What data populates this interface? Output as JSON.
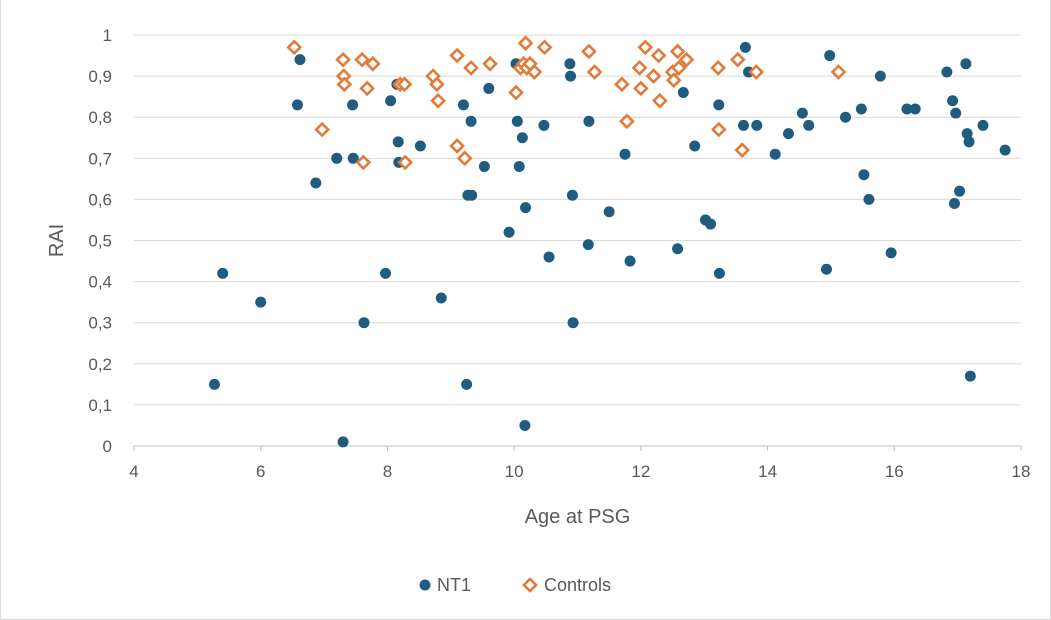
{
  "chart_data": {
    "type": "scatter",
    "title": "",
    "xlabel": "Age at PSG",
    "ylabel": "RAI",
    "xlim": [
      4,
      18
    ],
    "ylim": [
      0,
      1
    ],
    "xticks": [
      4,
      6,
      8,
      10,
      12,
      14,
      16,
      18
    ],
    "xtick_labels": [
      "4",
      "6",
      "8",
      "10",
      "12",
      "14",
      "16",
      "18"
    ],
    "yticks": [
      0,
      0.1,
      0.2,
      0.3,
      0.4,
      0.5,
      0.6,
      0.7,
      0.8,
      0.9,
      1
    ],
    "ytick_labels": [
      "0",
      "0,1",
      "0,2",
      "0,3",
      "0,4",
      "0,5",
      "0,6",
      "0,7",
      "0,8",
      "0,9",
      "1"
    ],
    "grid": "horizontal",
    "legend_position": "bottom",
    "series": [
      {
        "name": "NT1",
        "color": "#1f5c80",
        "marker": "circle",
        "points": [
          [
            5.27,
            0.15
          ],
          [
            5.4,
            0.42
          ],
          [
            6.0,
            0.35
          ],
          [
            6.58,
            0.83
          ],
          [
            6.62,
            0.94
          ],
          [
            6.87,
            0.64
          ],
          [
            7.2,
            0.7
          ],
          [
            7.3,
            0.01
          ],
          [
            7.45,
            0.83
          ],
          [
            7.46,
            0.7
          ],
          [
            7.63,
            0.3
          ],
          [
            7.97,
            0.42
          ],
          [
            8.05,
            0.84
          ],
          [
            8.15,
            0.88
          ],
          [
            8.17,
            0.74
          ],
          [
            8.18,
            0.69
          ],
          [
            8.52,
            0.73
          ],
          [
            8.85,
            0.36
          ],
          [
            9.2,
            0.83
          ],
          [
            9.25,
            0.15
          ],
          [
            9.27,
            0.61
          ],
          [
            9.32,
            0.79
          ],
          [
            9.33,
            0.61
          ],
          [
            9.53,
            0.68
          ],
          [
            9.6,
            0.87
          ],
          [
            9.92,
            0.52
          ],
          [
            10.03,
            0.93
          ],
          [
            10.05,
            0.79
          ],
          [
            10.08,
            0.68
          ],
          [
            10.13,
            0.75
          ],
          [
            10.17,
            0.05
          ],
          [
            10.18,
            0.58
          ],
          [
            10.47,
            0.78
          ],
          [
            10.55,
            0.46
          ],
          [
            10.88,
            0.93
          ],
          [
            10.89,
            0.9
          ],
          [
            10.92,
            0.61
          ],
          [
            10.93,
            0.3
          ],
          [
            11.17,
            0.49
          ],
          [
            11.18,
            0.79
          ],
          [
            11.5,
            0.57
          ],
          [
            11.75,
            0.71
          ],
          [
            11.83,
            0.45
          ],
          [
            12.58,
            0.48
          ],
          [
            12.67,
            0.86
          ],
          [
            12.85,
            0.73
          ],
          [
            13.02,
            0.55
          ],
          [
            13.1,
            0.54
          ],
          [
            13.23,
            0.83
          ],
          [
            13.24,
            0.42
          ],
          [
            13.62,
            0.78
          ],
          [
            13.65,
            0.97
          ],
          [
            13.7,
            0.91
          ],
          [
            13.83,
            0.78
          ],
          [
            14.12,
            0.71
          ],
          [
            14.33,
            0.76
          ],
          [
            14.55,
            0.81
          ],
          [
            14.65,
            0.78
          ],
          [
            14.93,
            0.43
          ],
          [
            14.98,
            0.95
          ],
          [
            15.23,
            0.8
          ],
          [
            15.48,
            0.82
          ],
          [
            15.52,
            0.66
          ],
          [
            15.6,
            0.6
          ],
          [
            15.78,
            0.9
          ],
          [
            15.95,
            0.47
          ],
          [
            16.2,
            0.82
          ],
          [
            16.33,
            0.82
          ],
          [
            16.83,
            0.91
          ],
          [
            16.92,
            0.84
          ],
          [
            16.95,
            0.59
          ],
          [
            16.97,
            0.81
          ],
          [
            17.03,
            0.62
          ],
          [
            17.13,
            0.93
          ],
          [
            17.15,
            0.76
          ],
          [
            17.18,
            0.74
          ],
          [
            17.2,
            0.17
          ],
          [
            17.4,
            0.78
          ],
          [
            17.75,
            0.72
          ]
        ]
      },
      {
        "name": "Controls",
        "color": "#e07b39",
        "marker": "diamond",
        "points": [
          [
            6.53,
            0.97
          ],
          [
            6.97,
            0.77
          ],
          [
            7.3,
            0.94
          ],
          [
            7.31,
            0.9
          ],
          [
            7.32,
            0.88
          ],
          [
            7.6,
            0.94
          ],
          [
            7.62,
            0.69
          ],
          [
            7.68,
            0.87
          ],
          [
            7.77,
            0.93
          ],
          [
            8.2,
            0.88
          ],
          [
            8.27,
            0.88
          ],
          [
            8.28,
            0.69
          ],
          [
            8.72,
            0.9
          ],
          [
            8.78,
            0.88
          ],
          [
            8.8,
            0.84
          ],
          [
            9.1,
            0.73
          ],
          [
            9.1,
            0.95
          ],
          [
            9.22,
            0.7
          ],
          [
            9.32,
            0.92
          ],
          [
            9.62,
            0.93
          ],
          [
            10.03,
            0.86
          ],
          [
            10.1,
            0.92
          ],
          [
            10.15,
            0.93
          ],
          [
            10.18,
            0.98
          ],
          [
            10.2,
            0.92
          ],
          [
            10.25,
            0.93
          ],
          [
            10.32,
            0.91
          ],
          [
            10.48,
            0.97
          ],
          [
            11.18,
            0.96
          ],
          [
            11.27,
            0.91
          ],
          [
            11.7,
            0.88
          ],
          [
            11.78,
            0.79
          ],
          [
            11.98,
            0.92
          ],
          [
            12.0,
            0.87
          ],
          [
            12.07,
            0.97
          ],
          [
            12.2,
            0.9
          ],
          [
            12.28,
            0.95
          ],
          [
            12.3,
            0.84
          ],
          [
            12.5,
            0.91
          ],
          [
            12.52,
            0.89
          ],
          [
            12.58,
            0.96
          ],
          [
            12.6,
            0.92
          ],
          [
            12.72,
            0.94
          ],
          [
            13.22,
            0.92
          ],
          [
            13.23,
            0.77
          ],
          [
            13.53,
            0.94
          ],
          [
            13.6,
            0.72
          ],
          [
            13.82,
            0.91
          ],
          [
            15.12,
            0.91
          ]
        ]
      }
    ]
  }
}
